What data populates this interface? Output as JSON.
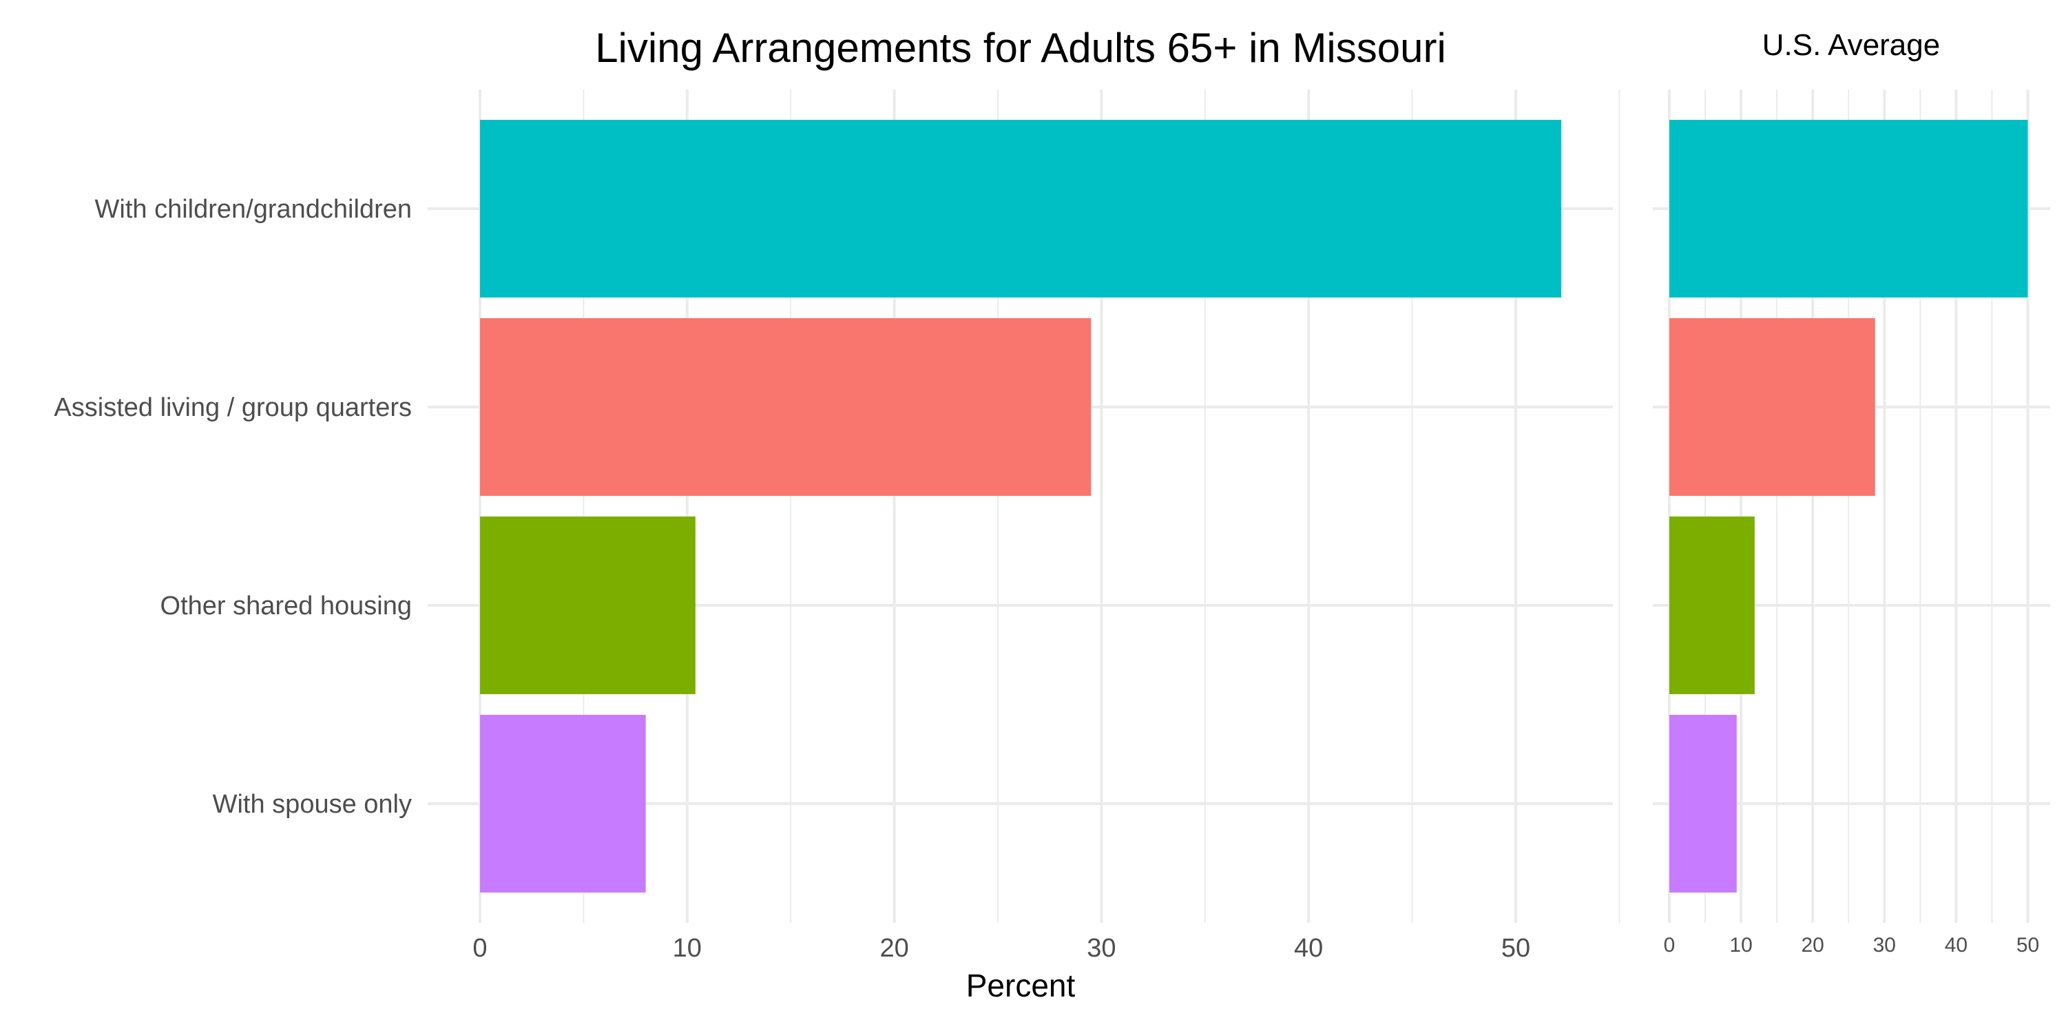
{
  "chart_data": [
    {
      "type": "bar",
      "orientation": "horizontal",
      "title": "Living Arrangements for Adults 65+ in Missouri",
      "xlabel": "Percent",
      "ylabel": "",
      "categories": [
        "With children/grandchildren",
        "Assisted living / group quarters",
        "Other shared housing",
        "With spouse only"
      ],
      "values": [
        52.2,
        29.5,
        10.4,
        8.0
      ],
      "colors": [
        "#00BFC4",
        "#F8766D",
        "#7CAE00",
        "#C77CFF"
      ],
      "xlim": [
        0,
        55
      ],
      "xticks": [
        0,
        10,
        20,
        30,
        40,
        50
      ],
      "xtick_labels": [
        "0",
        "10",
        "20",
        "30",
        "40",
        "50"
      ],
      "grid": true
    },
    {
      "type": "bar",
      "orientation": "horizontal",
      "title": "U.S. Average",
      "categories": [
        "With children/grandchildren",
        "Assisted living / group quarters",
        "Other shared housing",
        "With spouse only"
      ],
      "values": [
        50.0,
        28.7,
        11.9,
        9.4
      ],
      "colors": [
        "#00BFC4",
        "#F8766D",
        "#7CAE00",
        "#C77CFF"
      ],
      "xlim": [
        0,
        52
      ],
      "xticks": [
        0,
        10,
        20,
        30,
        40,
        50
      ],
      "xtick_labels": [
        "0",
        "10",
        "20",
        "30",
        "40",
        "50"
      ],
      "grid": true
    }
  ]
}
